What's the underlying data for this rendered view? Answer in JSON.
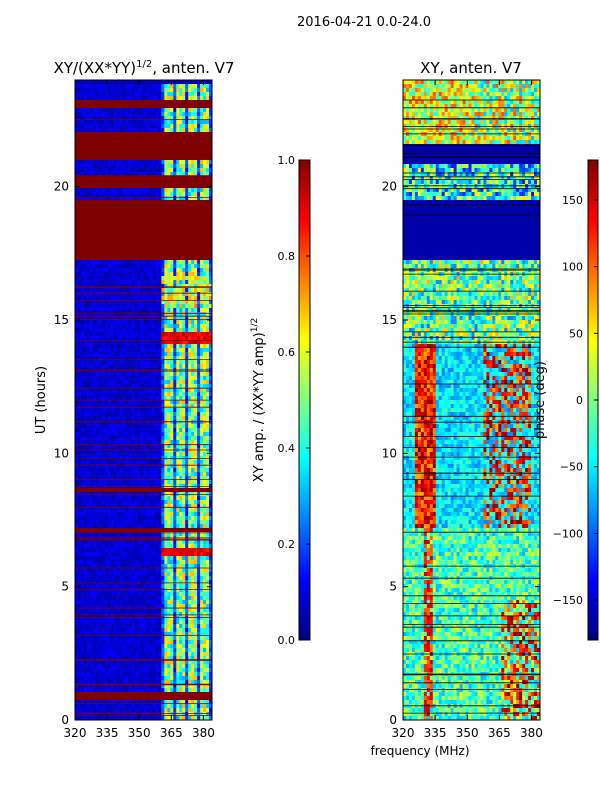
{
  "figure_title": "2016-04-21 0.0-24.0",
  "colors": {
    "jet_stops": [
      "#00007f",
      "#0000ff",
      "#0080ff",
      "#00ffff",
      "#80ff80",
      "#ffff00",
      "#ff8000",
      "#ff0000",
      "#7f0000"
    ],
    "flag_red": "#7f0000",
    "axis": "#000000"
  },
  "chart_data": [
    {
      "type": "heatmap",
      "title_main": "XY/(XX*YY)",
      "title_sup": "1/2",
      "title_rest": ", anten. V7",
      "xlabel": "",
      "ylabel": "UT (hours)",
      "xlim": [
        320,
        384
      ],
      "ylim": [
        0,
        24
      ],
      "xticks": [
        320,
        335,
        350,
        365,
        380
      ],
      "yticks": [
        0,
        5,
        10,
        15,
        20
      ],
      "colorbar": {
        "label": "XY amp. / (XX*YY amp)",
        "label_sup": "1/2",
        "range": [
          0.0,
          1.0
        ],
        "ticks": [
          "0.0",
          "0.2",
          "0.4",
          "0.6",
          "0.8",
          "1.0"
        ],
        "tick_values": [
          0.0,
          0.2,
          0.4,
          0.6,
          0.8,
          1.0
        ]
      },
      "flagged_ut_blocks": [
        [
          0.8,
          1.0
        ],
        [
          7.0,
          7.15
        ],
        [
          8.5,
          8.65
        ],
        [
          17.2,
          19.5
        ],
        [
          20.0,
          20.4
        ],
        [
          21.0,
          22.0
        ],
        [
          23.0,
          23.2
        ]
      ],
      "bright_freq_band_mhz": [
        361,
        384
      ]
    },
    {
      "type": "heatmap",
      "title_main": "XY, anten. V7",
      "xlabel": "frequency (MHz)",
      "ylabel": "",
      "xlim": [
        320,
        384
      ],
      "ylim": [
        0,
        24
      ],
      "xticks": [
        320,
        335,
        350,
        365,
        380
      ],
      "yticks": [
        0,
        5,
        10,
        15,
        20
      ],
      "colorbar": {
        "label": "phase (deg)",
        "range": [
          -180,
          180
        ],
        "ticks": [
          "−150",
          "−100",
          "−50",
          "0",
          "50",
          "100",
          "150"
        ],
        "tick_values": [
          -150,
          -100,
          -50,
          0,
          50,
          100,
          150
        ]
      },
      "flagged_ut_blocks": [
        [
          17.2,
          19.5
        ],
        [
          20.9,
          21.6
        ]
      ]
    }
  ]
}
